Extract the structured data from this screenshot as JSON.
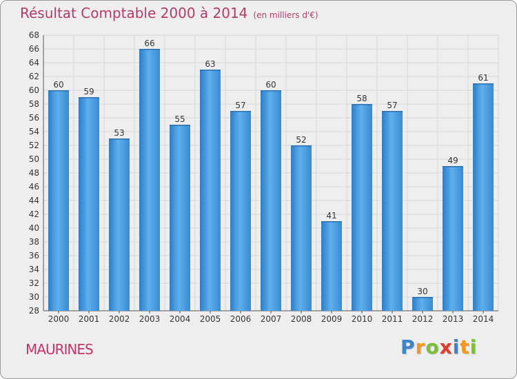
{
  "title": "Résultat Comptable 2000 à 2014",
  "subtitle": "(en milliers d'€)",
  "commune": "MAURINES",
  "logo": {
    "letters": [
      "P",
      "r",
      "o",
      "x",
      "i",
      "t",
      "i"
    ]
  },
  "colors": {
    "bar": "#3d8fd8",
    "bar_light": "#5fb0ee",
    "title": "#b23a6a",
    "background": "#eeeeee"
  },
  "chart_data": {
    "type": "bar",
    "categories": [
      "2000",
      "2001",
      "2002",
      "2003",
      "2004",
      "2005",
      "2006",
      "2007",
      "2008",
      "2009",
      "2010",
      "2011",
      "2012",
      "2013",
      "2014"
    ],
    "values": [
      60,
      59,
      53,
      66,
      55,
      63,
      57,
      60,
      52,
      41,
      58,
      57,
      30,
      49,
      61
    ],
    "title": "Résultat Comptable 2000 à 2014",
    "xlabel": "",
    "ylabel": "",
    "ylim": [
      28,
      68
    ],
    "yticks": [
      28,
      30,
      32,
      34,
      36,
      38,
      40,
      42,
      44,
      46,
      48,
      50,
      52,
      54,
      56,
      58,
      60,
      62,
      64,
      66,
      68
    ],
    "grid": true,
    "legend": "none"
  }
}
